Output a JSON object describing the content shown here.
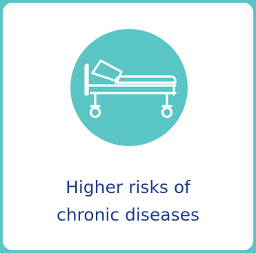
{
  "caption": {
    "line1": "Higher risks of",
    "line2": "chronic diseases"
  },
  "icon": {
    "name": "hospital-bed-icon"
  },
  "colors": {
    "background": "#5bc5c6",
    "card": "#ffffff",
    "circle": "#5bc5c6",
    "icon_stroke": "#ffffff",
    "text": "#1f3d8c"
  }
}
